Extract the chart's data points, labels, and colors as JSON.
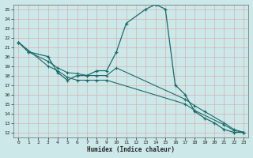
{
  "xlabel": "Humidex (Indice chaleur)",
  "bg_color": "#cce8e8",
  "grid_color": "#b0d0d0",
  "line_color": "#1a6b6b",
  "main_x": [
    0,
    1,
    3,
    4,
    5,
    6,
    7,
    8,
    9,
    10,
    11,
    13,
    14,
    15,
    16,
    17,
    18,
    19,
    20,
    21,
    22,
    23
  ],
  "main_y": [
    21.5,
    20.5,
    20.0,
    18.3,
    17.5,
    18.0,
    18.0,
    18.5,
    18.5,
    20.5,
    23.5,
    25.0,
    25.5,
    25.0,
    17.0,
    16.0,
    14.2,
    13.5,
    13.0,
    12.3,
    12.0,
    12.0
  ],
  "reg1_x": [
    0,
    1,
    3,
    4,
    5,
    6,
    7,
    8,
    9,
    10,
    17,
    18,
    19,
    21,
    22,
    23
  ],
  "reg1_y": [
    21.5,
    20.5,
    19.5,
    18.8,
    18.3,
    18.2,
    18.0,
    18.0,
    18.0,
    18.8,
    15.5,
    14.8,
    14.2,
    13.0,
    12.3,
    12.0
  ],
  "reg2_x": [
    0,
    3,
    4,
    5,
    6,
    7,
    8,
    9,
    17,
    18,
    21,
    22,
    23
  ],
  "reg2_y": [
    21.5,
    19.0,
    18.5,
    17.8,
    17.5,
    17.5,
    17.5,
    17.5,
    15.0,
    14.3,
    12.8,
    12.2,
    12.0
  ],
  "ylim": [
    11.5,
    25.5
  ],
  "xlim": [
    -0.5,
    23.5
  ],
  "yticks": [
    12,
    13,
    14,
    15,
    16,
    17,
    18,
    19,
    20,
    21,
    22,
    23,
    24,
    25
  ],
  "xticks": [
    0,
    1,
    2,
    3,
    4,
    5,
    6,
    7,
    8,
    9,
    10,
    11,
    12,
    13,
    14,
    15,
    16,
    17,
    18,
    19,
    20,
    21,
    22,
    23
  ]
}
